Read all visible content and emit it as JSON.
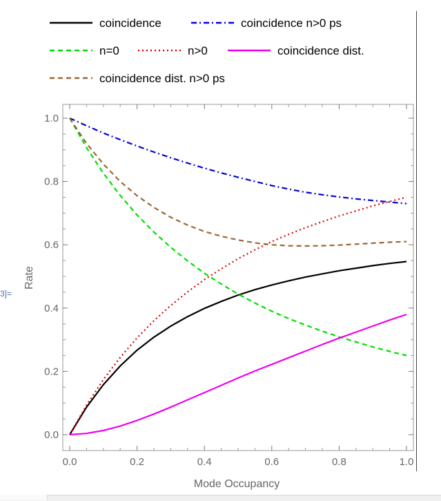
{
  "side_label": "3]=",
  "chart_data": {
    "type": "line",
    "title": "",
    "xlabel": "Mode Occupancy",
    "ylabel": "Rate",
    "xlim": [
      0,
      1
    ],
    "ylim": [
      0,
      1
    ],
    "x_ticks": [
      "0.0",
      "0.2",
      "0.4",
      "0.6",
      "0.8",
      "1.0"
    ],
    "y_ticks": [
      "0.0",
      "0.2",
      "0.4",
      "0.6",
      "0.8",
      "1.0"
    ],
    "grid": false,
    "legend_position": "top",
    "x": [
      0.0,
      0.05,
      0.1,
      0.15,
      0.2,
      0.25,
      0.3,
      0.35,
      0.4,
      0.45,
      0.5,
      0.55,
      0.6,
      0.65,
      0.7,
      0.75,
      0.8,
      0.85,
      0.9,
      0.95,
      1.0
    ],
    "series": [
      {
        "name": "coincidence",
        "color": "#000000",
        "dash": "solid",
        "values": [
          0.0,
          0.087,
          0.158,
          0.217,
          0.267,
          0.308,
          0.343,
          0.373,
          0.399,
          0.421,
          0.441,
          0.458,
          0.473,
          0.486,
          0.498,
          0.508,
          0.518,
          0.526,
          0.534,
          0.541,
          0.547
        ]
      },
      {
        "name": "coincidence n>0 ps",
        "color": "#0000dd",
        "dash": "dashdot",
        "values": [
          1.0,
          0.976,
          0.953,
          0.932,
          0.912,
          0.893,
          0.875,
          0.858,
          0.842,
          0.827,
          0.813,
          0.8,
          0.787,
          0.776,
          0.766,
          0.758,
          0.751,
          0.745,
          0.74,
          0.735,
          0.73
        ]
      },
      {
        "name": "n=0",
        "color": "#00dd00",
        "dash": "dashed",
        "values": [
          1.0,
          0.907,
          0.826,
          0.756,
          0.694,
          0.64,
          0.592,
          0.549,
          0.51,
          0.476,
          0.444,
          0.416,
          0.39,
          0.367,
          0.346,
          0.327,
          0.309,
          0.293,
          0.277,
          0.263,
          0.25
        ]
      },
      {
        "name": "n>0",
        "color": "#dd0000",
        "dash": "dotted",
        "values": [
          0.0,
          0.093,
          0.174,
          0.244,
          0.306,
          0.36,
          0.408,
          0.451,
          0.49,
          0.524,
          0.556,
          0.584,
          0.61,
          0.633,
          0.654,
          0.673,
          0.691,
          0.707,
          0.723,
          0.737,
          0.75
        ]
      },
      {
        "name": "coincidence dist.",
        "color": "#ee00ee",
        "dash": "solid",
        "values": [
          0.0,
          0.004,
          0.013,
          0.027,
          0.045,
          0.065,
          0.087,
          0.11,
          0.133,
          0.156,
          0.179,
          0.201,
          0.222,
          0.243,
          0.264,
          0.285,
          0.305,
          0.324,
          0.343,
          0.362,
          0.38
        ]
      },
      {
        "name": "coincidence dist. n>0 ps",
        "color": "#996633",
        "dash": "dashed",
        "values": [
          1.0,
          0.92,
          0.855,
          0.8,
          0.755,
          0.718,
          0.687,
          0.662,
          0.642,
          0.627,
          0.615,
          0.606,
          0.6,
          0.597,
          0.596,
          0.597,
          0.599,
          0.602,
          0.605,
          0.608,
          0.61
        ]
      }
    ]
  }
}
